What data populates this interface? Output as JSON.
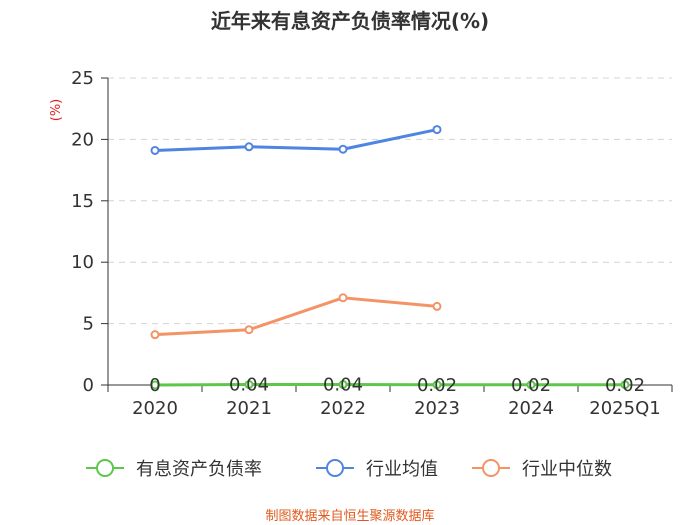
{
  "chart_data": {
    "type": "line",
    "title": "近年来有息资产负债率情况(%)",
    "ylabel": "(%)",
    "xlabel": "",
    "ylim": [
      0,
      25
    ],
    "yticks": [
      0,
      5,
      10,
      15,
      20,
      25
    ],
    "grid": true,
    "legend_position": "bottom",
    "categories": [
      "2020",
      "2021",
      "2022",
      "2023",
      "2024",
      "2025Q1"
    ],
    "series": [
      {
        "name": "有息资产负债率",
        "color": "#5ec74a",
        "values": [
          0,
          0.04,
          0.04,
          0.02,
          0.02,
          0.02
        ],
        "labels": [
          "0",
          "0.04",
          "0.04",
          "0.02",
          "0.02",
          "0.02"
        ],
        "show_labels": true
      },
      {
        "name": "行业均值",
        "color": "#4f85e0",
        "values": [
          19.1,
          19.4,
          19.2,
          20.8,
          null,
          null
        ],
        "show_labels": false
      },
      {
        "name": "行业中位数",
        "color": "#f49366",
        "values": [
          4.1,
          4.5,
          7.1,
          6.4,
          null,
          null
        ],
        "show_labels": false
      }
    ],
    "source": "制图数据来自恒生聚源数据库"
  }
}
